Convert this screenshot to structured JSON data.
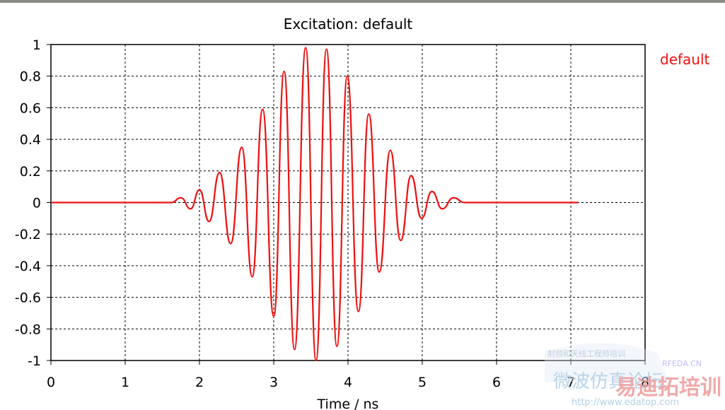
{
  "chart_data": {
    "type": "line",
    "title": "Excitation: default",
    "xlabel": "Time / ns",
    "ylabel": "",
    "xlim": [
      0,
      8.0
    ],
    "ylim": [
      -1,
      1
    ],
    "xticks": [
      "0",
      "1",
      "2",
      "3",
      "4",
      "5",
      "6",
      "7",
      "8"
    ],
    "yticks": [
      "1",
      "0.8",
      "0.6",
      "0.4",
      "0.2",
      "0",
      "-0.2",
      "-0.4",
      "-0.6",
      "-0.8",
      "-1"
    ],
    "grid": true,
    "legend_position": "top-right",
    "series": [
      {
        "name": "default",
        "color": "#ee1111",
        "x_range": [
          0,
          7.1
        ],
        "points": [
          [
            1.75,
            0.03
          ],
          [
            1.88,
            -0.04
          ],
          [
            2.0,
            0.08
          ],
          [
            2.13,
            -0.12
          ],
          [
            2.27,
            0.19
          ],
          [
            2.42,
            -0.26
          ],
          [
            2.57,
            0.35
          ],
          [
            2.71,
            -0.47
          ],
          [
            2.85,
            0.59
          ],
          [
            3.0,
            -0.72
          ],
          [
            3.14,
            0.83
          ],
          [
            3.28,
            -0.93
          ],
          [
            3.43,
            0.98
          ],
          [
            3.57,
            -1.0
          ],
          [
            3.71,
            0.97
          ],
          [
            3.85,
            -0.91
          ],
          [
            3.99,
            0.8
          ],
          [
            4.14,
            -0.69
          ],
          [
            4.28,
            0.56
          ],
          [
            4.42,
            -0.44
          ],
          [
            4.57,
            0.33
          ],
          [
            4.71,
            -0.24
          ],
          [
            4.85,
            0.17
          ],
          [
            4.99,
            -0.1
          ],
          [
            5.13,
            0.07
          ],
          [
            5.27,
            -0.04
          ],
          [
            5.42,
            0.03
          ]
        ]
      }
    ]
  },
  "watermark": {
    "site_en": "RFEDA.CN",
    "site_url": "http://www.edatop.com",
    "cn_large": "易迪拓培训",
    "cn_blue": "微波仿真论坛",
    "cn_small": "射频和天线工程师培训"
  }
}
